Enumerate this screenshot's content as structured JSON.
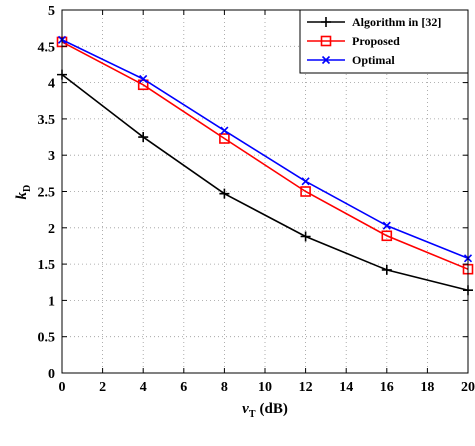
{
  "chart_data": {
    "type": "line",
    "xlabel": {
      "main": "v",
      "sub": "T",
      "unit": "(dB)"
    },
    "ylabel": {
      "main": "k",
      "sub": "D"
    },
    "xlim": [
      0,
      20
    ],
    "ylim": [
      0,
      5
    ],
    "xticks": [
      "0",
      "2",
      "4",
      "6",
      "8",
      "10",
      "12",
      "14",
      "16",
      "18",
      "20"
    ],
    "yticks": [
      "0",
      "0.5",
      "1",
      "1.5",
      "2",
      "2.5",
      "3",
      "3.5",
      "4",
      "4.5",
      "5"
    ],
    "grid": true,
    "legend_position": "top-right",
    "x": [
      0,
      4,
      8,
      12,
      16,
      20
    ],
    "series": [
      {
        "name": "Algorithm in [32]",
        "color": "#000000",
        "marker": "plus",
        "values": [
          4.11,
          3.25,
          2.47,
          1.88,
          1.42,
          1.14
        ]
      },
      {
        "name": "Proposed",
        "color": "#ff0000",
        "marker": "square",
        "values": [
          4.56,
          3.97,
          3.23,
          2.5,
          1.89,
          1.43
        ]
      },
      {
        "name": "Optimal",
        "color": "#0000ff",
        "marker": "x",
        "values": [
          4.59,
          4.05,
          3.34,
          2.64,
          2.03,
          1.58
        ]
      }
    ]
  }
}
